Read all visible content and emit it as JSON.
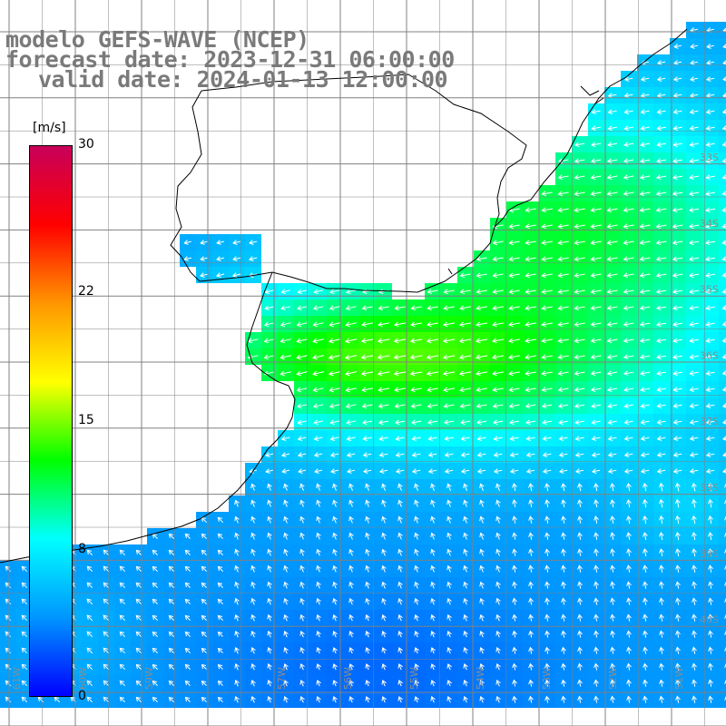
{
  "titles": {
    "model": "modelo GEFS-WAVE (NCEP)",
    "forecast": "forecast date: 2023-12-31 06:00:00",
    "valid": "valid date: 2024-01-13 12:00:00"
  },
  "colorbar": {
    "units": "[m/s]",
    "min": 0,
    "max": 30,
    "tick_labels": [
      "30",
      "22",
      "15",
      "8",
      "0"
    ],
    "tick_values": [
      30,
      22,
      15,
      8,
      0
    ],
    "colors": [
      "#0000ff",
      "#0096ff",
      "#00ffff",
      "#00ff00",
      "#ffff00",
      "#ff9600",
      "#ff0000",
      "#c8005a"
    ]
  },
  "axes": {
    "lon_labels": [
      "61W",
      "60W",
      "59W",
      "57W",
      "56W",
      "55W",
      "54W",
      "53W",
      "52W",
      "51W"
    ],
    "lat_labels": [
      "33S",
      "34S",
      "35S",
      "36S",
      "37S",
      "38S",
      "39S",
      "40S"
    ]
  },
  "colors": {
    "land": "#ffffff",
    "coast": "#000000",
    "grid": "#808080",
    "arrows": "#ffffff",
    "title_text": "#7a7a7a"
  }
}
